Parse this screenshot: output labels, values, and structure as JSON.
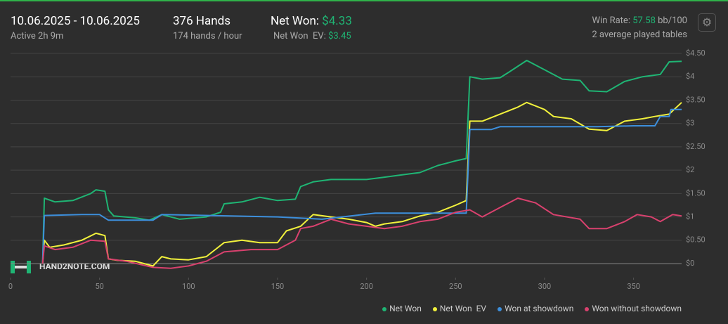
{
  "header": {
    "date_range": "10.06.2025 - 10.06.2025",
    "active": "Active 2h 9m",
    "hands": "376 Hands",
    "hands_per_hour": "174 hands / hour",
    "net_won_label": "Net Won:",
    "net_won_value": "$4.33",
    "net_won_ev_label": "Net Won  EV:",
    "net_won_ev_value": "$3.45",
    "win_rate_label": "Win Rate:",
    "win_rate_value": "57.58",
    "win_rate_unit": "bb/100",
    "tables": "2 average played tables"
  },
  "watermark": "HAND2NOTE.COM",
  "chart_data": {
    "type": "line",
    "xlim": [
      0,
      377
    ],
    "xticks": [
      0,
      50,
      100,
      150,
      200,
      250,
      300,
      350
    ],
    "ylim": [
      -0.3,
      4.5
    ],
    "yticks": [
      {
        "value": 0,
        "label": "$0"
      },
      {
        "value": 0.5,
        "label": "$0.50"
      },
      {
        "value": 1,
        "label": "$1"
      },
      {
        "value": 1.5,
        "label": "$1.50"
      },
      {
        "value": 2,
        "label": "$2"
      },
      {
        "value": 2.5,
        "label": "$2.50"
      },
      {
        "value": 3,
        "label": "$3"
      },
      {
        "value": 3.5,
        "label": "$3.50"
      },
      {
        "value": 4,
        "label": "$4"
      },
      {
        "value": 4.5,
        "label": "$4.50"
      }
    ],
    "grid": true,
    "legend": "bottom-right",
    "series": [
      {
        "name": "Net Won",
        "color": "#1fb574",
        "x": [
          18,
          19,
          25,
          35,
          45,
          48,
          53,
          55,
          58,
          70,
          78,
          85,
          95,
          110,
          118,
          120,
          130,
          140,
          150,
          160,
          163,
          170,
          180,
          190,
          200,
          210,
          220,
          230,
          240,
          250,
          256,
          258,
          265,
          275,
          280,
          290,
          300,
          310,
          320,
          325,
          335,
          345,
          355,
          365,
          370,
          377
        ],
        "values": [
          0,
          1.4,
          1.32,
          1.35,
          1.5,
          1.58,
          1.55,
          1.15,
          1.02,
          0.98,
          0.93,
          1.05,
          0.95,
          1.0,
          1.1,
          1.28,
          1.32,
          1.42,
          1.35,
          1.38,
          1.65,
          1.75,
          1.8,
          1.8,
          1.8,
          1.85,
          1.9,
          1.95,
          2.1,
          2.2,
          2.25,
          4.0,
          3.95,
          3.98,
          4.1,
          4.35,
          4.15,
          3.95,
          3.92,
          3.7,
          3.68,
          3.9,
          4.0,
          4.05,
          4.32,
          4.33
        ]
      },
      {
        "name": "Net Won  EV",
        "color": "#f2f23c",
        "x": [
          18,
          19,
          22,
          30,
          40,
          48,
          53,
          55,
          60,
          70,
          80,
          85,
          90,
          100,
          110,
          115,
          120,
          130,
          140,
          150,
          155,
          163,
          170,
          180,
          190,
          200,
          205,
          210,
          220,
          230,
          240,
          250,
          256,
          258,
          265,
          275,
          285,
          290,
          300,
          305,
          315,
          325,
          335,
          345,
          355,
          362,
          370,
          377
        ],
        "values": [
          0,
          0.5,
          0.35,
          0.4,
          0.5,
          0.65,
          0.6,
          0.1,
          0.07,
          0.05,
          -0.05,
          0.15,
          0.1,
          0.08,
          0.15,
          0.3,
          0.45,
          0.5,
          0.45,
          0.45,
          0.7,
          0.8,
          1.05,
          1.0,
          0.95,
          0.88,
          0.8,
          0.85,
          0.9,
          1.02,
          1.1,
          1.25,
          1.35,
          3.05,
          3.05,
          3.2,
          3.35,
          3.45,
          3.3,
          3.15,
          3.1,
          2.88,
          2.85,
          3.05,
          3.1,
          3.15,
          3.2,
          3.45
        ]
      },
      {
        "name": "Won at showdown",
        "color": "#3d8fdc",
        "x": [
          18,
          19,
          40,
          50,
          55,
          80,
          85,
          150,
          175,
          205,
          256,
          258,
          270,
          275,
          330,
          350,
          362,
          365,
          370,
          371,
          377
        ],
        "values": [
          0,
          1.03,
          1.05,
          1.05,
          0.93,
          0.93,
          1.05,
          1.0,
          0.95,
          1.08,
          1.08,
          2.87,
          2.87,
          2.93,
          2.93,
          2.95,
          2.95,
          3.15,
          3.15,
          3.3,
          3.3
        ]
      },
      {
        "name": "Won without showdown",
        "color": "#d9416e",
        "x": [
          18,
          19,
          25,
          35,
          45,
          53,
          55,
          65,
          80,
          90,
          100,
          110,
          120,
          135,
          150,
          160,
          163,
          170,
          180,
          190,
          200,
          210,
          220,
          230,
          240,
          250,
          258,
          265,
          275,
          285,
          295,
          305,
          320,
          325,
          335,
          345,
          352,
          360,
          365,
          372,
          377
        ],
        "values": [
          0,
          0.38,
          0.3,
          0.35,
          0.5,
          0.48,
          0.1,
          0.05,
          -0.08,
          -0.1,
          -0.05,
          0.05,
          0.25,
          0.3,
          0.3,
          0.5,
          0.75,
          0.8,
          0.95,
          0.85,
          0.8,
          0.75,
          0.8,
          0.9,
          0.95,
          1.1,
          1.15,
          1.0,
          1.2,
          1.4,
          1.3,
          1.05,
          0.95,
          0.75,
          0.75,
          0.9,
          1.05,
          1.0,
          0.9,
          1.05,
          1.02
        ]
      }
    ]
  }
}
